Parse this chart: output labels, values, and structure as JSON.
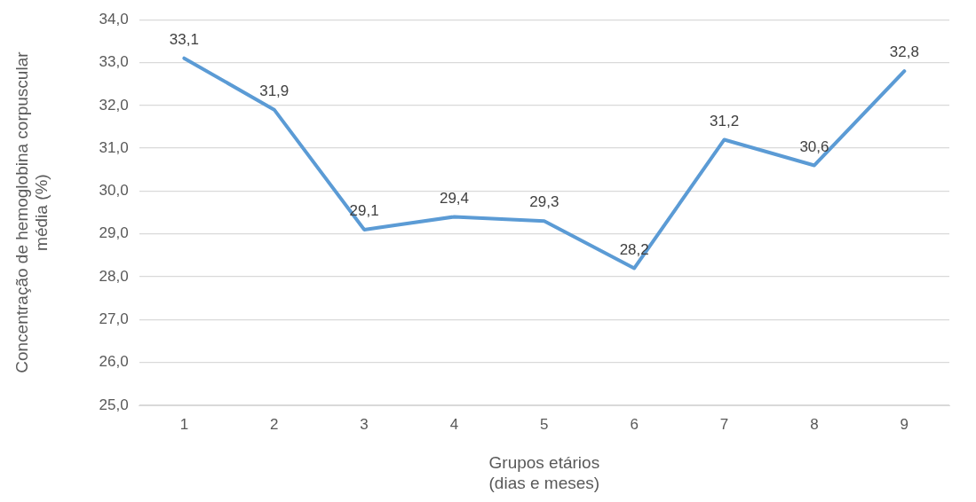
{
  "chart_data": {
    "type": "line",
    "categories": [
      "1",
      "2",
      "3",
      "4",
      "5",
      "6",
      "7",
      "8",
      "9"
    ],
    "series": [
      {
        "color": "#5b9bd5",
        "values": [
          33.1,
          31.9,
          29.1,
          29.4,
          29.3,
          28.2,
          31.2,
          30.6,
          32.8
        ],
        "value_labels": [
          "33,1",
          "31,9",
          "29,1",
          "29,4",
          "29,3",
          "28,2",
          "31,2",
          "30,6",
          "32,8"
        ]
      }
    ],
    "xlabel": "Grupos etários (dias e meses)",
    "ylabel": "Concentração de hemoglobina corpuscular média (%)",
    "ylim": [
      25,
      34
    ],
    "yticks": [
      {
        "value": 25,
        "label": "25,0"
      },
      {
        "value": 26,
        "label": "26,0"
      },
      {
        "value": 27,
        "label": "27,0"
      },
      {
        "value": 28,
        "label": "28,0"
      },
      {
        "value": 29,
        "label": "29,0"
      },
      {
        "value": 30,
        "label": "30,0"
      },
      {
        "value": 31,
        "label": "31,0"
      },
      {
        "value": 32,
        "label": "32,0"
      },
      {
        "value": 33,
        "label": "33,0"
      },
      {
        "value": 34,
        "label": "34,0"
      }
    ],
    "grid": "y",
    "legend": false,
    "marker": "none",
    "line_style": "solid"
  }
}
